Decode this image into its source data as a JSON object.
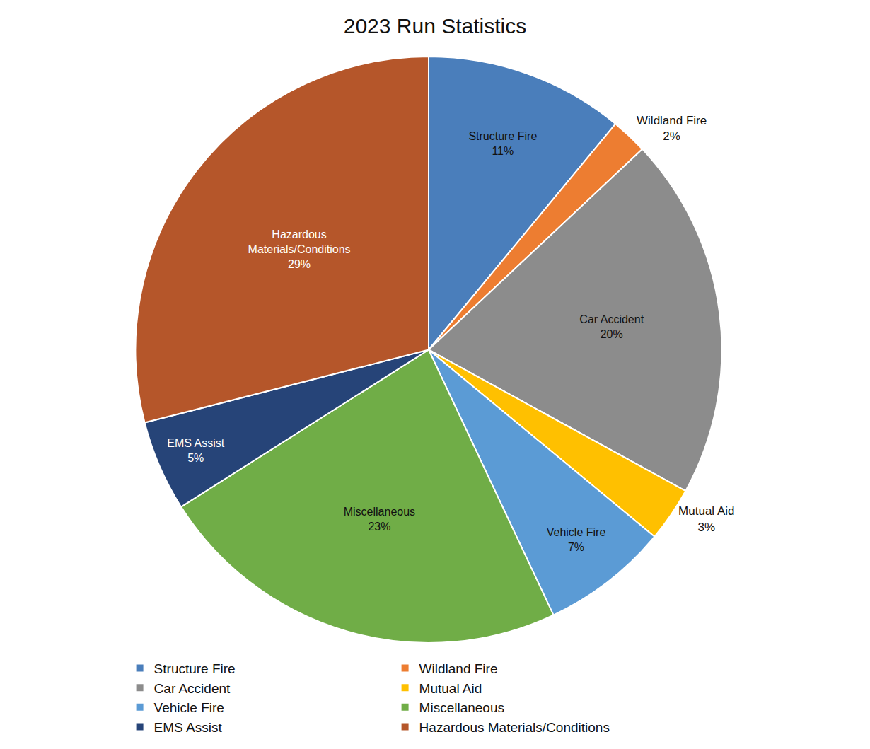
{
  "chart_data": {
    "type": "pie",
    "title": "2023 Run Statistics",
    "categories": [
      "Structure Fire",
      "Wildland Fire",
      "Car Accident",
      "Mutual Aid",
      "Vehicle Fire",
      "Miscellaneous",
      "EMS Assist",
      "Hazardous Materials/Conditions"
    ],
    "values": [
      11,
      2,
      20,
      3,
      7,
      23,
      5,
      29
    ],
    "value_labels": [
      "11%",
      "2%",
      "20%",
      "3%",
      "7%",
      "23%",
      "5%",
      "29%"
    ],
    "colors": [
      "#4a7ebb",
      "#ed7d31",
      "#8c8c8c",
      "#ffc000",
      "#5b9bd5",
      "#70ad47",
      "#264478",
      "#b5562a"
    ],
    "data_labels": true,
    "legend": "bottom"
  }
}
